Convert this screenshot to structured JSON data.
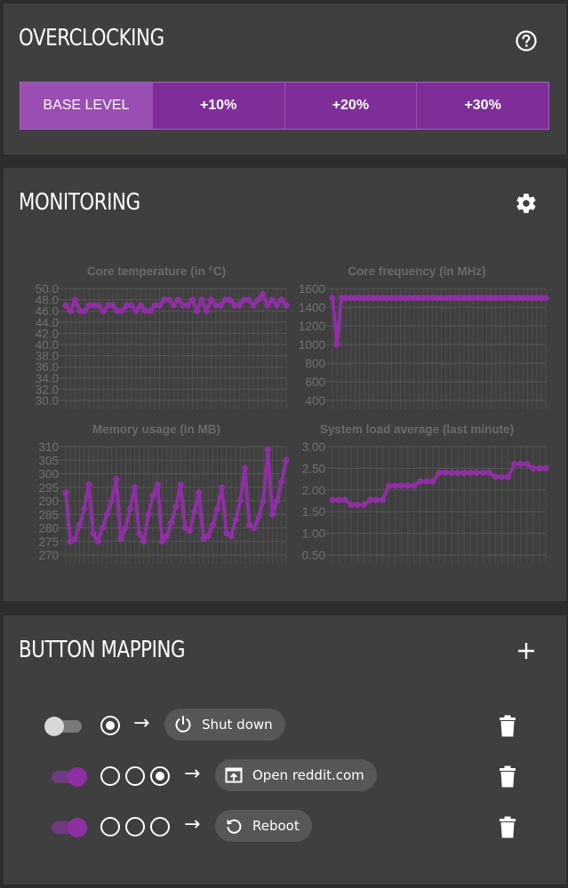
{
  "overclocking": {
    "title": "OVERCLOCKING",
    "help_icon": "help-circle-icon",
    "levels": [
      "BASE LEVEL",
      "+10%",
      "+20%",
      "+30%"
    ],
    "selected_level": "BASE LEVEL"
  },
  "monitoring": {
    "title": "MONITORING",
    "settings_icon": "gear-icon"
  },
  "chart_data": [
    {
      "type": "line",
      "title": "Core temperature (in °C)",
      "ylim": [
        30,
        50
      ],
      "yticks": [
        "50.0",
        "48.0",
        "46.0",
        "44.0",
        "42.0",
        "40.0",
        "38.0",
        "36.0",
        "34.0",
        "32.0",
        "30.0"
      ],
      "grid": true,
      "color": "#8e2fa3",
      "values": [
        47,
        46,
        48,
        46,
        46,
        47,
        47,
        47,
        46,
        47,
        47,
        46,
        46,
        47,
        47,
        46,
        47,
        46,
        46,
        47,
        47,
        48,
        48,
        47,
        48,
        47,
        47,
        48,
        46,
        48,
        46,
        48,
        47,
        47,
        48,
        48,
        47,
        47,
        48,
        48,
        47,
        48,
        49,
        47,
        48,
        47,
        48,
        47
      ]
    },
    {
      "type": "line",
      "title": "Core frequency (in MHz)",
      "ylim": [
        400,
        1600
      ],
      "yticks": [
        "1600",
        "1400",
        "1200",
        "1000",
        "800",
        "600",
        "400"
      ],
      "grid": true,
      "color": "#8e2fa3",
      "values": [
        1500,
        1000,
        1500,
        1500,
        1500,
        1500,
        1500,
        1500,
        1500,
        1500,
        1500,
        1500,
        1500,
        1500,
        1500,
        1500,
        1500,
        1500,
        1500,
        1500,
        1500,
        1500,
        1500,
        1500,
        1500,
        1500,
        1500,
        1500,
        1500,
        1500,
        1500,
        1500,
        1500,
        1500,
        1500,
        1500,
        1500,
        1500,
        1500,
        1500,
        1500,
        1500,
        1500,
        1500,
        1500,
        1500,
        1500,
        1500
      ]
    },
    {
      "type": "line",
      "title": "Memory usage (in MB)",
      "ylim": [
        270,
        310
      ],
      "yticks": [
        "310",
        "305",
        "300",
        "295",
        "290",
        "285",
        "280",
        "275",
        "270"
      ],
      "grid": true,
      "color": "#8e2fa3",
      "values": [
        293,
        275,
        276,
        281,
        287,
        296,
        278,
        275,
        280,
        285,
        290,
        298,
        276,
        280,
        287,
        295,
        278,
        275,
        285,
        292,
        296,
        275,
        277,
        282,
        288,
        296,
        280,
        279,
        286,
        293,
        276,
        277,
        281,
        287,
        295,
        278,
        277,
        283,
        290,
        302,
        281,
        280,
        284,
        290,
        309,
        285,
        290,
        297,
        305
      ]
    },
    {
      "type": "line",
      "title": "System load average (last minute)",
      "ylim": [
        0.5,
        3.0
      ],
      "yticks": [
        "3.00",
        "2.50",
        "2.00",
        "1.50",
        "1.00",
        "0.50"
      ],
      "grid": true,
      "color": "#8e2fa3",
      "values": [
        1.77,
        1.77,
        1.77,
        1.66,
        1.66,
        1.66,
        1.77,
        1.77,
        1.77,
        2.1,
        2.1,
        2.1,
        2.1,
        2.1,
        2.2,
        2.2,
        2.2,
        2.4,
        2.4,
        2.4,
        2.4,
        2.4,
        2.4,
        2.4,
        2.4,
        2.4,
        2.3,
        2.3,
        2.3,
        2.6,
        2.6,
        2.6,
        2.5,
        2.5,
        2.5
      ]
    }
  ],
  "button_mapping": {
    "title": "BUTTON MAPPING",
    "add_icon": "plus-icon",
    "arrow": "→",
    "rows": [
      {
        "enabled": false,
        "presses": [
          true
        ],
        "action_icon": "power-icon",
        "action_label": "Shut down"
      },
      {
        "enabled": true,
        "presses": [
          false,
          false,
          true
        ],
        "action_icon": "open-link-icon",
        "action_label": "Open reddit.com"
      },
      {
        "enabled": true,
        "presses": [
          false,
          false,
          false
        ],
        "action_icon": "restart-icon",
        "action_label": "Reboot"
      }
    ]
  }
}
